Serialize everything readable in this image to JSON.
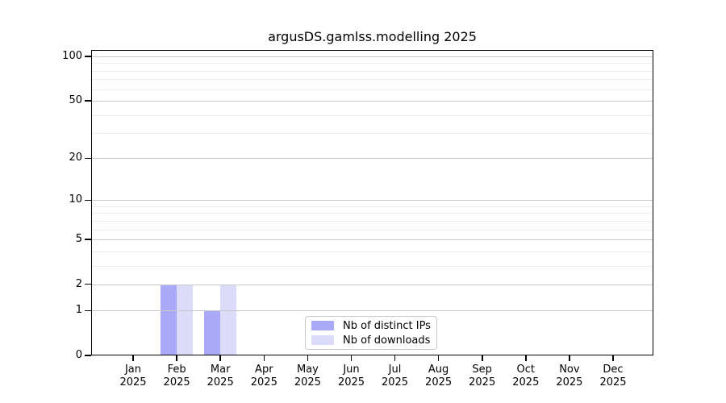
{
  "page": {
    "background": "#ffffff"
  },
  "chart_data": {
    "type": "bar",
    "title": "argusDS.gamlss.modelling 2025",
    "x_axis": {
      "months": [
        "Jan",
        "Feb",
        "Mar",
        "Apr",
        "May",
        "Jun",
        "Jul",
        "Aug",
        "Sep",
        "Oct",
        "Nov",
        "Dec"
      ],
      "year": "2025"
    },
    "y_axis": {
      "scale": "log1p",
      "tick_labels": [
        100,
        50,
        20,
        10,
        5,
        2,
        1,
        0
      ],
      "minor_gridlines": [
        3,
        4,
        6,
        7,
        8,
        9,
        30,
        40,
        60,
        70,
        80,
        90
      ],
      "range": [
        0,
        110
      ],
      "grid": true
    },
    "series": [
      {
        "name": "Nb of distinct IPs",
        "color": "#a9a9f7",
        "values": [
          0,
          2,
          1,
          0,
          0,
          0,
          0,
          0,
          0,
          0,
          0,
          0
        ]
      },
      {
        "name": "Nb of downloads",
        "color": "#dcdbf9",
        "values": [
          0,
          2,
          2,
          0,
          0,
          0,
          0,
          0,
          0,
          0,
          0,
          0
        ]
      }
    ],
    "legend": {
      "position": "inside-bottom-center"
    },
    "colors": {
      "major_gridline": "#c8c8c8",
      "minor_gridline": "#ededed",
      "axis": "#000000",
      "text": "#000000"
    }
  }
}
